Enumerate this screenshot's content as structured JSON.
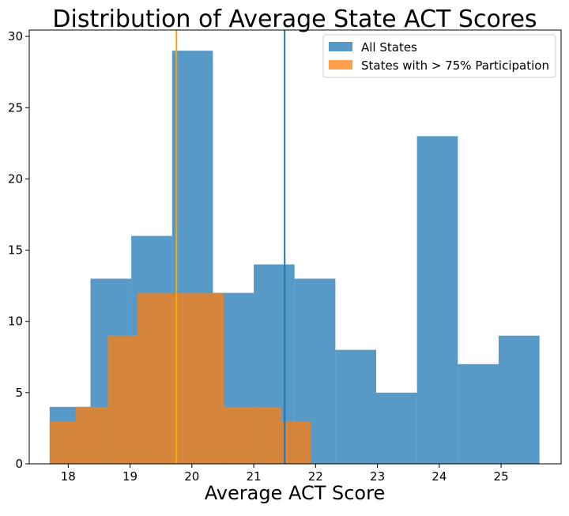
{
  "chart_data": {
    "type": "bar",
    "title": "Distribution of Average State ACT Scores",
    "xlabel": "Average ACT Score",
    "ylabel": "",
    "xlim": [
      17.37,
      25.97
    ],
    "ylim": [
      0,
      30.45
    ],
    "x_ticks": [
      18,
      19,
      20,
      21,
      22,
      23,
      24,
      25
    ],
    "y_ticks": [
      0,
      5,
      10,
      15,
      20,
      25,
      30
    ],
    "grid": false,
    "legend_position": "top-right",
    "series": [
      {
        "name": "All States",
        "color": "#1f77b4",
        "bins": [
          {
            "start": 17.7,
            "end": 18.36,
            "count": 4
          },
          {
            "start": 18.36,
            "end": 19.02,
            "count": 13
          },
          {
            "start": 19.02,
            "end": 19.68,
            "count": 16
          },
          {
            "start": 19.68,
            "end": 20.34,
            "count": 29
          },
          {
            "start": 20.34,
            "end": 21.0,
            "count": 12
          },
          {
            "start": 21.0,
            "end": 21.66,
            "count": 14
          },
          {
            "start": 21.66,
            "end": 22.32,
            "count": 13
          },
          {
            "start": 22.32,
            "end": 22.98,
            "count": 8
          },
          {
            "start": 22.98,
            "end": 23.64,
            "count": 5
          },
          {
            "start": 23.64,
            "end": 24.3,
            "count": 23
          },
          {
            "start": 24.3,
            "end": 24.96,
            "count": 7
          },
          {
            "start": 24.96,
            "end": 25.62,
            "count": 9
          }
        ]
      },
      {
        "name": "States with > 75% Participation",
        "color": "#ff7f0e",
        "bins": [
          {
            "start": 17.7,
            "end": 18.12,
            "count": 3
          },
          {
            "start": 18.12,
            "end": 18.64,
            "count": 4
          },
          {
            "start": 18.64,
            "end": 19.12,
            "count": 9
          },
          {
            "start": 19.12,
            "end": 19.8,
            "count": 12
          },
          {
            "start": 19.8,
            "end": 20.52,
            "count": 12
          },
          {
            "start": 20.52,
            "end": 21.02,
            "count": 4
          },
          {
            "start": 21.02,
            "end": 21.45,
            "count": 4
          },
          {
            "start": 21.45,
            "end": 21.92,
            "count": 3
          }
        ]
      }
    ],
    "vertical_lines": [
      {
        "x": 19.75,
        "color": "#ffa500"
      },
      {
        "x": 21.5,
        "color": "#1f77b4"
      }
    ]
  }
}
